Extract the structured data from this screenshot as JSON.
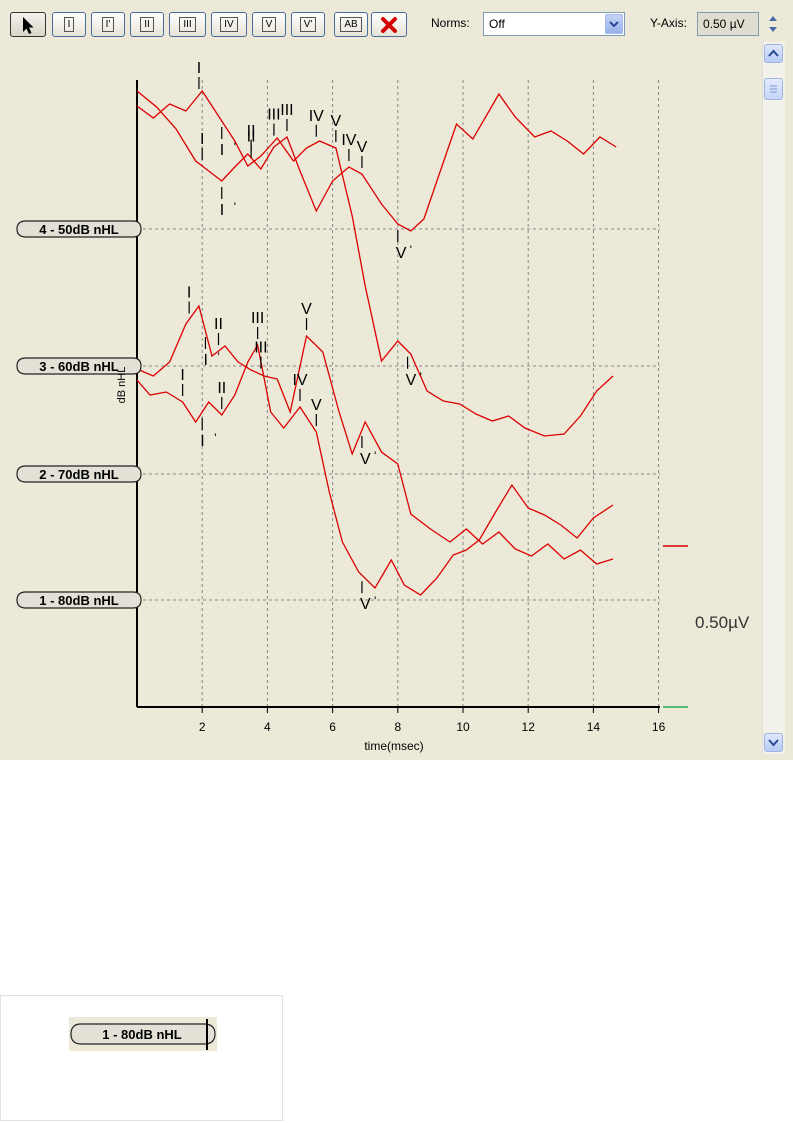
{
  "toolbar": {
    "tools": [
      {
        "name": "pointer-tool-button",
        "label": ""
      },
      {
        "name": "marker-i-button",
        "label": "I"
      },
      {
        "name": "marker-i-prime-button",
        "label": "I'"
      },
      {
        "name": "marker-ii-button",
        "label": "II"
      },
      {
        "name": "marker-iii-button",
        "label": "III"
      },
      {
        "name": "marker-iv-button",
        "label": "IV"
      },
      {
        "name": "marker-v-button",
        "label": "V"
      },
      {
        "name": "marker-v-prime-button",
        "label": "V'"
      },
      {
        "name": "marker-ab-button",
        "label": "AB"
      },
      {
        "name": "delete-marker-button",
        "label": ""
      }
    ],
    "norms_label": "Norms:",
    "norms_value": "Off",
    "yaxis_label": "Y-Axis:",
    "yaxis_value": "0.50 µV"
  },
  "chart": {
    "ylabel": "dB nHL",
    "xlabel": "time(msec)",
    "scale_label": "0.50µV",
    "trace_color": "#dd0000",
    "grid_color": "#888888",
    "marker_color": "#000000"
  },
  "chart_data": {
    "type": "line",
    "xlabel": "time(msec)",
    "ylabel": "dB nHL",
    "xlim": [
      0,
      16
    ],
    "xticks": [
      2,
      4,
      6,
      8,
      10,
      12,
      14,
      16
    ],
    "grid": true,
    "series": [
      {
        "name": "4 - 50dB nHL",
        "markers": [
          {
            "label": "I",
            "x": 2.0
          },
          {
            "label": "I '",
            "x": 2.6
          },
          {
            "label": "II",
            "x": 3.5
          },
          {
            "label": "III",
            "x": 4.6
          },
          {
            "label": "IV",
            "x": 6.5
          },
          {
            "label": "V",
            "x": 6.9
          },
          {
            "label": "V '",
            "x": 8.0
          }
        ]
      },
      {
        "name": "3 - 60dB nHL",
        "markers": [
          {
            "label": "I",
            "x": 1.9
          },
          {
            "label": "I '",
            "x": 2.6
          },
          {
            "label": "II",
            "x": 3.5
          },
          {
            "label": "III",
            "x": 4.2
          },
          {
            "label": "IV",
            "x": 5.5
          },
          {
            "label": "V",
            "x": 6.1
          },
          {
            "label": "V '",
            "x": 8.3
          }
        ]
      },
      {
        "name": "2 - 70dB nHL",
        "markers": [
          {
            "label": "I",
            "x": 1.6
          },
          {
            "label": "I '",
            "x": 2.1
          },
          {
            "label": "II",
            "x": 2.5
          },
          {
            "label": "III",
            "x": 3.8
          },
          {
            "label": "V",
            "x": 5.2
          },
          {
            "label": "V '",
            "x": 6.9
          }
        ]
      },
      {
        "name": "1 - 80dB nHL",
        "markers": [
          {
            "label": "I",
            "x": 1.4
          },
          {
            "label": "I '",
            "x": 2.0
          },
          {
            "label": "II",
            "x": 2.6
          },
          {
            "label": "III",
            "x": 3.7
          },
          {
            "label": "IV",
            "x": 5.0
          },
          {
            "label": "V",
            "x": 5.5
          },
          {
            "label": "V '",
            "x": 6.9
          }
        ]
      }
    ]
  },
  "preview": {
    "label": "1 - 80dB nHL"
  }
}
